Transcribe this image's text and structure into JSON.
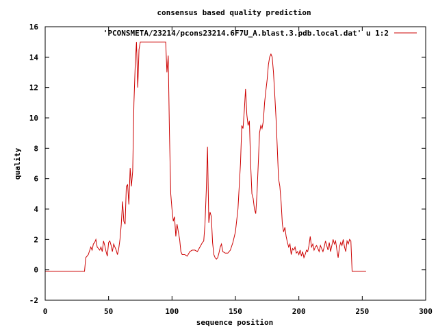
{
  "chart_data": {
    "type": "line",
    "title": "consensus based quality prediction",
    "xlabel": "sequence position",
    "ylabel": "quality",
    "xlim": [
      0,
      300
    ],
    "ylim": [
      -2,
      16
    ],
    "xticks": [
      0,
      50,
      100,
      150,
      200,
      250,
      300
    ],
    "yticks": [
      -2,
      0,
      2,
      4,
      6,
      8,
      10,
      12,
      14,
      16
    ],
    "grid": false,
    "legend_position": "top-right",
    "series": [
      {
        "name": "'PCONSMETA/23214/pcons23214.6F7U_A.blast.3.pdb.local.dat' u 1:2",
        "color": "#cc0000",
        "points": [
          [
            0,
            -0.1
          ],
          [
            31,
            -0.1
          ],
          [
            32,
            0.8
          ],
          [
            34,
            1.0
          ],
          [
            36,
            1.5
          ],
          [
            37,
            1.3
          ],
          [
            38,
            1.7
          ],
          [
            39,
            1.8
          ],
          [
            40,
            2.0
          ],
          [
            41,
            1.5
          ],
          [
            42,
            1.4
          ],
          [
            43,
            1.3
          ],
          [
            44,
            1.5
          ],
          [
            45,
            1.2
          ],
          [
            46,
            1.9
          ],
          [
            47,
            1.6
          ],
          [
            48,
            1.2
          ],
          [
            49,
            0.9
          ],
          [
            50,
            1.8
          ],
          [
            51,
            1.9
          ],
          [
            52,
            1.6
          ],
          [
            53,
            1.2
          ],
          [
            54,
            1.7
          ],
          [
            55,
            1.5
          ],
          [
            56,
            1.3
          ],
          [
            57,
            1.0
          ],
          [
            58,
            1.4
          ],
          [
            59,
            2.0
          ],
          [
            60,
            3.0
          ],
          [
            61,
            4.5
          ],
          [
            62,
            3.2
          ],
          [
            63,
            3.0
          ],
          [
            64,
            5.5
          ],
          [
            65,
            5.6
          ],
          [
            66,
            4.3
          ],
          [
            67,
            6.7
          ],
          [
            68,
            5.5
          ],
          [
            69,
            6.5
          ],
          [
            70,
            11.0
          ],
          [
            71,
            13.5
          ],
          [
            72,
            15.0
          ],
          [
            73,
            12.0
          ],
          [
            74,
            14.5
          ],
          [
            75,
            15.0
          ],
          [
            80,
            15.0
          ],
          [
            85,
            15.0
          ],
          [
            90,
            15.0
          ],
          [
            94,
            15.0
          ],
          [
            95,
            15.0
          ],
          [
            96,
            13.0
          ],
          [
            97,
            14.1
          ],
          [
            98,
            9.0
          ],
          [
            99,
            5.0
          ],
          [
            100,
            4.0
          ],
          [
            101,
            3.2
          ],
          [
            102,
            3.5
          ],
          [
            103,
            2.2
          ],
          [
            104,
            3.0
          ],
          [
            105,
            2.5
          ],
          [
            106,
            2.0
          ],
          [
            107,
            1.2
          ],
          [
            108,
            1.0
          ],
          [
            110,
            1.0
          ],
          [
            112,
            0.9
          ],
          [
            114,
            1.2
          ],
          [
            116,
            1.3
          ],
          [
            118,
            1.3
          ],
          [
            120,
            1.2
          ],
          [
            122,
            1.5
          ],
          [
            124,
            1.8
          ],
          [
            125,
            1.9
          ],
          [
            126,
            3.0
          ],
          [
            127,
            5.2
          ],
          [
            128,
            8.1
          ],
          [
            129,
            3.1
          ],
          [
            130,
            3.8
          ],
          [
            131,
            3.5
          ],
          [
            132,
            1.8
          ],
          [
            133,
            1.0
          ],
          [
            134,
            0.8
          ],
          [
            135,
            0.7
          ],
          [
            136,
            0.8
          ],
          [
            137,
            1.1
          ],
          [
            138,
            1.5
          ],
          [
            139,
            1.7
          ],
          [
            140,
            1.2
          ],
          [
            142,
            1.1
          ],
          [
            144,
            1.1
          ],
          [
            146,
            1.3
          ],
          [
            148,
            1.8
          ],
          [
            150,
            2.5
          ],
          [
            152,
            4.0
          ],
          [
            154,
            7.0
          ],
          [
            155,
            9.5
          ],
          [
            156,
            9.3
          ],
          [
            157,
            10.5
          ],
          [
            158,
            11.9
          ],
          [
            159,
            10.2
          ],
          [
            160,
            9.5
          ],
          [
            161,
            9.8
          ],
          [
            162,
            7.0
          ],
          [
            163,
            5.0
          ],
          [
            164,
            4.7
          ],
          [
            165,
            4.0
          ],
          [
            166,
            3.7
          ],
          [
            167,
            5.0
          ],
          [
            168,
            7.0
          ],
          [
            169,
            9.0
          ],
          [
            170,
            9.5
          ],
          [
            171,
            9.3
          ],
          [
            172,
            9.8
          ],
          [
            173,
            11.0
          ],
          [
            174,
            11.8
          ],
          [
            175,
            12.5
          ],
          [
            176,
            13.5
          ],
          [
            177,
            14.0
          ],
          [
            178,
            14.2
          ],
          [
            179,
            14.0
          ],
          [
            180,
            13.0
          ],
          [
            181,
            11.5
          ],
          [
            182,
            10.0
          ],
          [
            183,
            8.0
          ],
          [
            184,
            6.0
          ],
          [
            185,
            5.5
          ],
          [
            186,
            4.5
          ],
          [
            187,
            3.0
          ],
          [
            188,
            2.5
          ],
          [
            189,
            2.8
          ],
          [
            190,
            2.2
          ],
          [
            191,
            1.8
          ],
          [
            192,
            1.5
          ],
          [
            193,
            1.7
          ],
          [
            194,
            1.0
          ],
          [
            195,
            1.4
          ],
          [
            196,
            1.3
          ],
          [
            197,
            1.5
          ],
          [
            198,
            1.1
          ],
          [
            199,
            1.2
          ],
          [
            200,
            1.0
          ],
          [
            201,
            1.3
          ],
          [
            202,
            0.9
          ],
          [
            203,
            1.2
          ],
          [
            204,
            0.8
          ],
          [
            205,
            1.0
          ],
          [
            206,
            1.3
          ],
          [
            207,
            1.2
          ],
          [
            208,
            1.6
          ],
          [
            209,
            2.2
          ],
          [
            210,
            1.5
          ],
          [
            211,
            1.7
          ],
          [
            212,
            1.3
          ],
          [
            213,
            1.5
          ],
          [
            214,
            1.6
          ],
          [
            215,
            1.4
          ],
          [
            216,
            1.2
          ],
          [
            217,
            1.6
          ],
          [
            218,
            1.4
          ],
          [
            219,
            1.2
          ],
          [
            220,
            1.5
          ],
          [
            221,
            1.9
          ],
          [
            222,
            1.6
          ],
          [
            223,
            1.3
          ],
          [
            224,
            1.8
          ],
          [
            225,
            1.2
          ],
          [
            226,
            1.6
          ],
          [
            227,
            2.0
          ],
          [
            228,
            1.7
          ],
          [
            229,
            1.9
          ],
          [
            230,
            1.3
          ],
          [
            231,
            0.8
          ],
          [
            232,
            1.5
          ],
          [
            233,
            1.8
          ],
          [
            234,
            1.6
          ],
          [
            235,
            2.0
          ],
          [
            236,
            1.5
          ],
          [
            237,
            1.2
          ],
          [
            238,
            1.9
          ],
          [
            239,
            1.7
          ],
          [
            240,
            2.0
          ],
          [
            241,
            1.9
          ],
          [
            242,
            -0.1
          ],
          [
            253,
            -0.1
          ]
        ]
      }
    ]
  }
}
